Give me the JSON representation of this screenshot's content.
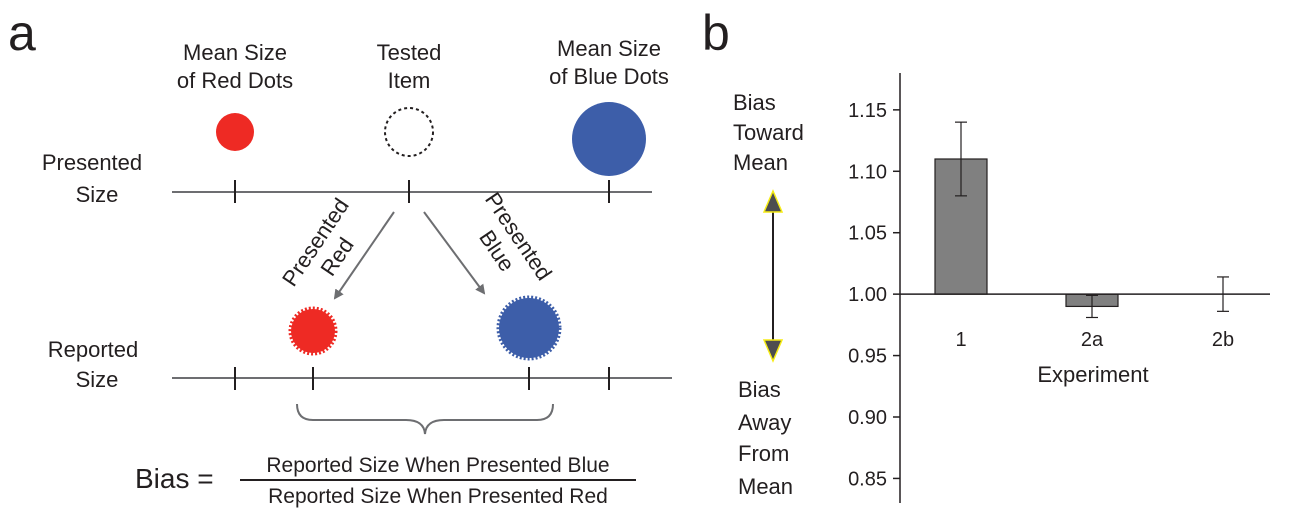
{
  "panel_a": {
    "label": "a",
    "mean_red_line1": "Mean Size",
    "mean_red_line2": "of Red Dots",
    "tested_line1": "Tested",
    "tested_line2": "Item",
    "mean_blue_line1": "Mean Size",
    "mean_blue_line2": "of Blue Dots",
    "presented_size_line1": "Presented",
    "presented_size_line2": "Size",
    "reported_size_line1": "Reported",
    "reported_size_line2": "Size",
    "arrow_red_line1": "Presented",
    "arrow_red_line2": "Red",
    "arrow_blue_line1": "Presented",
    "arrow_blue_line2": "Blue",
    "bias_label": "Bias =",
    "bias_numerator": "Reported Size When Presented Blue",
    "bias_denominator": "Reported Size When Presented Red",
    "colors": {
      "red": "#ee2a24",
      "blue": "#3d5ea9",
      "line": "#6d6e71"
    }
  },
  "panel_b": {
    "label": "b",
    "annotation_toward_line1": "Bias",
    "annotation_toward_line2": "Toward",
    "annotation_toward_line3": "Mean",
    "annotation_away_line1": "Bias",
    "annotation_away_line2": "Away",
    "annotation_away_line3": "From",
    "annotation_away_line4": "Mean"
  },
  "chart_data": {
    "type": "bar",
    "categories": [
      "1",
      "2a",
      "2b"
    ],
    "values": [
      1.11,
      0.99,
      1.0
    ],
    "errors": [
      0.03,
      0.009,
      0.014
    ],
    "baseline": 1.0,
    "xlabel": "Experiment",
    "ylabel": "",
    "ylim": [
      0.83,
      1.18
    ],
    "yticks": [
      0.85,
      0.9,
      0.95,
      1.0,
      1.05,
      1.1,
      1.15
    ],
    "ytick_labels": [
      "0.85",
      "0.90",
      "0.95",
      "1.00",
      "1.05",
      "1.10",
      "1.15"
    ],
    "grid": false,
    "bar_color": "#808080"
  }
}
